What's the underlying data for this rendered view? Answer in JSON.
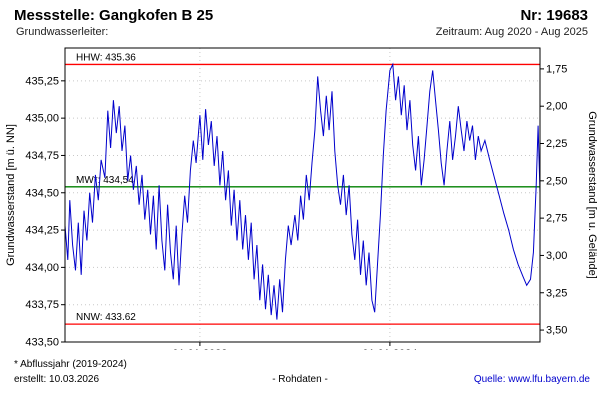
{
  "header": {
    "title": "Messstelle: Gangkofen B 25",
    "number": "Nr: 19683",
    "aquifer_label": "Grundwasserleiter:",
    "period": "Zeitraum: Aug 2020 - Aug 2025"
  },
  "footer": {
    "note": "* Abflussjahr (2019-2024)",
    "created": "erstellt: 10.03.2026",
    "data_type": "- Rohdaten -",
    "source_label": "Quelle: ",
    "source_link": "www.lfu.bayern.de"
  },
  "chart_data": {
    "type": "line",
    "title": "",
    "ylabel_left": "Grundwasserstand [m ü. NN]",
    "ylabel_right": "Grundwasserstand [m u. Gelände]",
    "xlim": [
      2020.58,
      2025.58
    ],
    "ylim_left": [
      433.5,
      435.47
    ],
    "grid": true,
    "yticks_left": {
      "values": [
        433.5,
        433.75,
        434.0,
        434.25,
        434.5,
        434.75,
        435.0,
        435.25
      ],
      "labels": [
        "433,50",
        "433,75",
        "434,00",
        "434,25",
        "434,50",
        "434,75",
        "435,00",
        "435,25"
      ]
    },
    "yticks_right": {
      "ground_ref": 437.08,
      "values": [
        1.75,
        2.0,
        2.25,
        2.5,
        2.75,
        3.0,
        3.25,
        3.5
      ],
      "labels": [
        "1,75",
        "2,00",
        "2,25",
        "2,50",
        "2,75",
        "3,00",
        "3,25",
        "3,50"
      ]
    },
    "xticks": {
      "values": [
        2022.0,
        2024.0
      ],
      "labels": [
        "01.01.2022",
        "01.01.2024"
      ]
    },
    "reference_lines": [
      {
        "name": "HHW",
        "label": "HHW: 435.36",
        "value": 435.36,
        "color": "#ff0000"
      },
      {
        "name": "MW",
        "label": "MW*: 434,54",
        "value": 434.54,
        "color": "#008000"
      },
      {
        "name": "NNW",
        "label": "NNW: 433.62",
        "value": 433.62,
        "color": "#ff0000"
      }
    ],
    "series": [
      {
        "name": "Rohdaten",
        "color": "#0000cc",
        "points": [
          [
            2020.58,
            434.28
          ],
          [
            2020.61,
            434.05
          ],
          [
            2020.63,
            434.45
          ],
          [
            2020.66,
            434.15
          ],
          [
            2020.69,
            433.98
          ],
          [
            2020.72,
            434.3
          ],
          [
            2020.75,
            433.95
          ],
          [
            2020.78,
            434.38
          ],
          [
            2020.81,
            434.18
          ],
          [
            2020.84,
            434.5
          ],
          [
            2020.87,
            434.3
          ],
          [
            2020.9,
            434.62
          ],
          [
            2020.93,
            434.45
          ],
          [
            2020.96,
            434.72
          ],
          [
            2021.0,
            434.6
          ],
          [
            2021.03,
            435.05
          ],
          [
            2021.06,
            434.8
          ],
          [
            2021.09,
            435.12
          ],
          [
            2021.12,
            434.9
          ],
          [
            2021.15,
            435.08
          ],
          [
            2021.18,
            434.78
          ],
          [
            2021.21,
            434.95
          ],
          [
            2021.24,
            434.58
          ],
          [
            2021.27,
            434.75
          ],
          [
            2021.3,
            434.52
          ],
          [
            2021.33,
            434.68
          ],
          [
            2021.36,
            434.42
          ],
          [
            2021.39,
            434.62
          ],
          [
            2021.42,
            434.32
          ],
          [
            2021.45,
            434.52
          ],
          [
            2021.48,
            434.22
          ],
          [
            2021.51,
            434.48
          ],
          [
            2021.54,
            434.12
          ],
          [
            2021.57,
            434.55
          ],
          [
            2021.6,
            434.18
          ],
          [
            2021.63,
            433.98
          ],
          [
            2021.66,
            434.42
          ],
          [
            2021.69,
            434.1
          ],
          [
            2021.72,
            433.92
          ],
          [
            2021.75,
            434.28
          ],
          [
            2021.78,
            433.88
          ],
          [
            2021.81,
            434.22
          ],
          [
            2021.84,
            434.48
          ],
          [
            2021.87,
            434.3
          ],
          [
            2021.9,
            434.65
          ],
          [
            2021.93,
            434.85
          ],
          [
            2021.96,
            434.7
          ],
          [
            2022.0,
            435.02
          ],
          [
            2022.03,
            434.72
          ],
          [
            2022.06,
            435.06
          ],
          [
            2022.09,
            434.82
          ],
          [
            2022.12,
            434.98
          ],
          [
            2022.15,
            434.68
          ],
          [
            2022.18,
            434.88
          ],
          [
            2022.21,
            434.55
          ],
          [
            2022.24,
            434.78
          ],
          [
            2022.27,
            434.45
          ],
          [
            2022.3,
            434.65
          ],
          [
            2022.33,
            434.28
          ],
          [
            2022.36,
            434.52
          ],
          [
            2022.39,
            434.18
          ],
          [
            2022.42,
            434.45
          ],
          [
            2022.45,
            434.12
          ],
          [
            2022.48,
            434.35
          ],
          [
            2022.51,
            434.05
          ],
          [
            2022.54,
            434.3
          ],
          [
            2022.57,
            433.92
          ],
          [
            2022.6,
            434.15
          ],
          [
            2022.63,
            433.78
          ],
          [
            2022.66,
            434.02
          ],
          [
            2022.69,
            433.72
          ],
          [
            2022.72,
            433.95
          ],
          [
            2022.75,
            433.68
          ],
          [
            2022.78,
            433.88
          ],
          [
            2022.81,
            433.65
          ],
          [
            2022.84,
            433.92
          ],
          [
            2022.87,
            433.7
          ],
          [
            2022.9,
            434.05
          ],
          [
            2022.93,
            434.28
          ],
          [
            2022.96,
            434.15
          ],
          [
            2023.0,
            434.35
          ],
          [
            2023.03,
            434.18
          ],
          [
            2023.06,
            434.48
          ],
          [
            2023.09,
            434.32
          ],
          [
            2023.12,
            434.62
          ],
          [
            2023.15,
            434.45
          ],
          [
            2023.18,
            434.7
          ],
          [
            2023.21,
            434.92
          ],
          [
            2023.24,
            435.28
          ],
          [
            2023.27,
            435.05
          ],
          [
            2023.3,
            434.88
          ],
          [
            2023.33,
            435.15
          ],
          [
            2023.36,
            434.92
          ],
          [
            2023.39,
            435.18
          ],
          [
            2023.42,
            434.78
          ],
          [
            2023.45,
            434.55
          ],
          [
            2023.48,
            434.42
          ],
          [
            2023.51,
            434.62
          ],
          [
            2023.54,
            434.35
          ],
          [
            2023.57,
            434.55
          ],
          [
            2023.6,
            434.22
          ],
          [
            2023.63,
            434.05
          ],
          [
            2023.66,
            434.32
          ],
          [
            2023.69,
            433.95
          ],
          [
            2023.72,
            434.18
          ],
          [
            2023.75,
            433.88
          ],
          [
            2023.78,
            434.1
          ],
          [
            2023.81,
            433.78
          ],
          [
            2023.84,
            433.7
          ],
          [
            2023.87,
            434.02
          ],
          [
            2023.9,
            434.35
          ],
          [
            2023.93,
            434.75
          ],
          [
            2023.96,
            435.05
          ],
          [
            2024.0,
            435.32
          ],
          [
            2024.03,
            435.36
          ],
          [
            2024.06,
            435.12
          ],
          [
            2024.09,
            435.28
          ],
          [
            2024.12,
            435.02
          ],
          [
            2024.15,
            435.22
          ],
          [
            2024.18,
            434.92
          ],
          [
            2024.21,
            435.12
          ],
          [
            2024.24,
            434.82
          ],
          [
            2024.27,
            434.65
          ],
          [
            2024.3,
            434.88
          ],
          [
            2024.33,
            434.55
          ],
          [
            2024.36,
            434.72
          ],
          [
            2024.39,
            434.95
          ],
          [
            2024.42,
            435.18
          ],
          [
            2024.45,
            435.32
          ],
          [
            2024.48,
            435.12
          ],
          [
            2024.51,
            434.92
          ],
          [
            2024.54,
            434.7
          ],
          [
            2024.57,
            434.55
          ],
          [
            2024.6,
            434.78
          ],
          [
            2024.63,
            434.98
          ],
          [
            2024.66,
            434.72
          ],
          [
            2024.69,
            434.88
          ],
          [
            2024.72,
            435.08
          ],
          [
            2024.75,
            434.92
          ],
          [
            2024.78,
            434.78
          ],
          [
            2024.81,
            434.98
          ],
          [
            2024.84,
            434.85
          ],
          [
            2024.87,
            434.95
          ],
          [
            2024.9,
            434.72
          ],
          [
            2024.93,
            434.88
          ],
          [
            2024.96,
            434.78
          ],
          [
            2025.0,
            434.85
          ],
          [
            2025.05,
            434.72
          ],
          [
            2025.1,
            434.6
          ],
          [
            2025.15,
            434.48
          ],
          [
            2025.2,
            434.36
          ],
          [
            2025.25,
            434.25
          ],
          [
            2025.3,
            434.12
          ],
          [
            2025.35,
            434.02
          ],
          [
            2025.4,
            433.94
          ],
          [
            2025.44,
            433.88
          ],
          [
            2025.48,
            433.92
          ],
          [
            2025.51,
            434.1
          ],
          [
            2025.54,
            434.55
          ],
          [
            2025.56,
            434.95
          ],
          [
            2025.58,
            434.5
          ]
        ]
      }
    ]
  }
}
